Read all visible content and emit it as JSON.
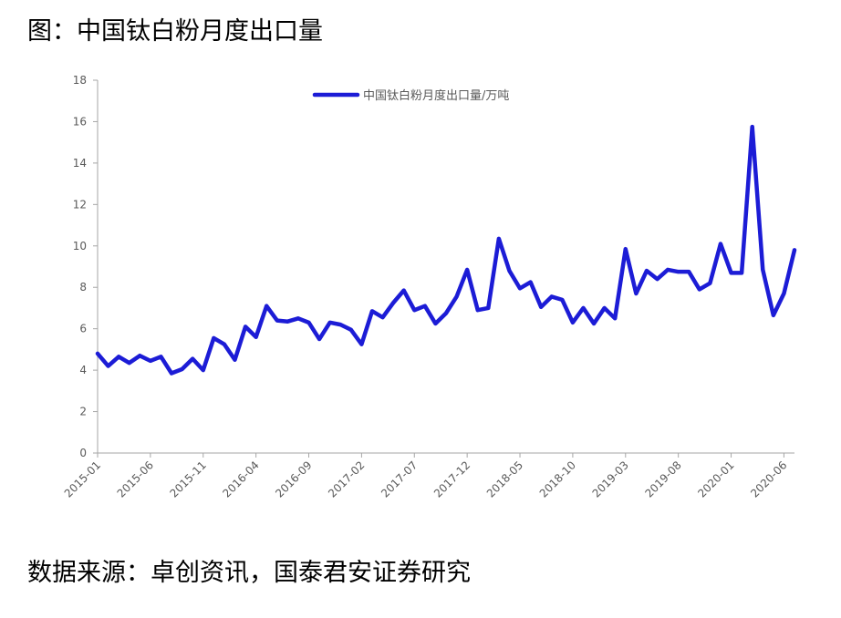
{
  "figure": {
    "title": "图：中国钛白粉月度出口量",
    "source": "数据来源：卓创资讯，国泰君安证券研究"
  },
  "chart_data": {
    "type": "line",
    "title": "",
    "xlabel": "",
    "ylabel": "",
    "ylim": [
      0,
      18
    ],
    "yticks": [
      0,
      2,
      4,
      6,
      8,
      10,
      12,
      14,
      16,
      18
    ],
    "xtick_labels": [
      "2015-01",
      "2015-06",
      "2015-11",
      "2016-04",
      "2016-09",
      "2017-02",
      "2017-07",
      "2017-12",
      "2018-05",
      "2018-10",
      "2019-03",
      "2019-08",
      "2020-01",
      "2020-06"
    ],
    "legend_position": "top",
    "grid": false,
    "x": [
      "2015-01",
      "2015-02",
      "2015-03",
      "2015-04",
      "2015-05",
      "2015-06",
      "2015-07",
      "2015-08",
      "2015-09",
      "2015-10",
      "2015-11",
      "2015-12",
      "2016-01",
      "2016-02",
      "2016-03",
      "2016-04",
      "2016-05",
      "2016-06",
      "2016-07",
      "2016-08",
      "2016-09",
      "2016-10",
      "2016-11",
      "2016-12",
      "2017-01",
      "2017-02",
      "2017-03",
      "2017-04",
      "2017-05",
      "2017-06",
      "2017-07",
      "2017-08",
      "2017-09",
      "2017-10",
      "2017-11",
      "2017-12",
      "2018-01",
      "2018-02",
      "2018-03",
      "2018-04",
      "2018-05",
      "2018-06",
      "2018-07",
      "2018-08",
      "2018-09",
      "2018-10",
      "2018-11",
      "2018-12",
      "2019-01",
      "2019-02",
      "2019-03",
      "2019-04",
      "2019-05",
      "2019-06",
      "2019-07",
      "2019-08",
      "2019-09",
      "2019-10",
      "2019-11",
      "2019-12",
      "2020-01",
      "2020-02",
      "2020-03",
      "2020-04",
      "2020-05",
      "2020-06",
      "2020-07"
    ],
    "series": [
      {
        "name": "中国钛白粉月度出口量/万吨",
        "color": "#1c1cd6",
        "values": [
          4.8,
          4.2,
          4.65,
          4.35,
          4.7,
          4.45,
          4.65,
          3.85,
          4.05,
          4.55,
          4.0,
          5.55,
          5.25,
          4.5,
          6.1,
          5.6,
          7.1,
          6.4,
          6.35,
          6.5,
          6.3,
          5.5,
          6.3,
          6.2,
          5.95,
          5.25,
          6.85,
          6.55,
          7.25,
          7.85,
          6.9,
          7.1,
          6.25,
          6.75,
          7.55,
          8.85,
          6.9,
          7.0,
          10.35,
          8.8,
          7.95,
          8.25,
          7.05,
          7.55,
          7.4,
          6.3,
          7.0,
          6.25,
          7.0,
          6.5,
          9.85,
          7.7,
          8.8,
          8.4,
          8.85,
          8.75,
          8.75,
          7.9,
          8.2,
          10.1,
          8.7,
          8.7,
          15.75,
          8.85,
          6.65,
          7.7,
          9.8
        ]
      }
    ]
  }
}
